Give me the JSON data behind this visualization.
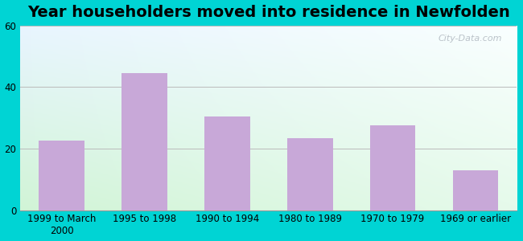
{
  "title": "Year householders moved into residence in Newfolden",
  "categories": [
    "1999 to March\n2000",
    "1995 to 1998",
    "1990 to 1994",
    "1980 to 1989",
    "1970 to 1979",
    "1969 or earlier"
  ],
  "values": [
    22.5,
    44.5,
    30.5,
    23.5,
    27.5,
    13.0
  ],
  "bar_color": "#c8a8d8",
  "ylim": [
    0,
    60
  ],
  "yticks": [
    0,
    20,
    40,
    60
  ],
  "bg_outer": "#00d4d4",
  "bg_top_left": "#e8f5ff",
  "bg_bottom_right": "#d8f0d8",
  "grid_color": "#bbbbbb",
  "title_fontsize": 14,
  "tick_fontsize": 8.5,
  "watermark": "City-Data.com"
}
